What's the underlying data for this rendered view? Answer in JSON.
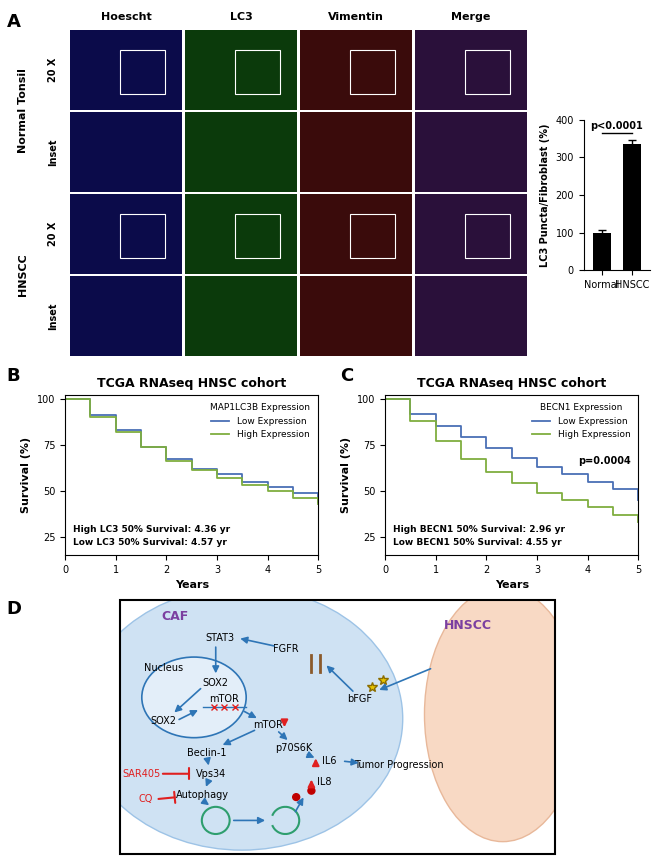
{
  "panel_labels": [
    "A",
    "B",
    "C",
    "D"
  ],
  "microscopy": {
    "columns": [
      "Hoescht",
      "LC3",
      "Vimentin",
      "Merge"
    ],
    "colors": [
      "#0b0b4a",
      "#0b3a0b",
      "#3a0b0b",
      "#2a103a"
    ],
    "rows": [
      {
        "group": "Normal Tonsil",
        "subrows": [
          "20 X",
          "Inset"
        ]
      },
      {
        "group": "HNSCC",
        "subrows": [
          "20 X",
          "Inset"
        ]
      }
    ]
  },
  "chart_data": [
    {
      "type": "bar",
      "categories": [
        "Normal",
        "HNSCC"
      ],
      "values": [
        100,
        335
      ],
      "errors": [
        8,
        12
      ],
      "color": "#000000",
      "ylabel": "LC3 Puncta/Fibroblast (%)",
      "ylim": [
        0,
        400
      ],
      "yticks": [
        0,
        100,
        200,
        300,
        400
      ],
      "annotation": "p<0.0001"
    },
    {
      "type": "line",
      "line_style": "steps",
      "title": "TCGA RNAseq HNSC cohort",
      "legend_title": "MAP1LC3B Expression",
      "legend": "upper right",
      "x": [
        0,
        0.5,
        1,
        1.5,
        2,
        2.5,
        3,
        3.5,
        4,
        4.5,
        5
      ],
      "series": [
        {
          "name": "Low Expression",
          "color": "#4a6fb5",
          "values": [
            100,
            91,
            83,
            74,
            67,
            62,
            59,
            55,
            52,
            49,
            44
          ]
        },
        {
          "name": "High Expression",
          "color": "#7fae3f",
          "values": [
            100,
            90,
            82,
            74,
            66,
            61,
            57,
            53,
            50,
            46,
            43
          ]
        }
      ],
      "xlabel": "Years",
      "ylabel": "Survival (%)",
      "xlim": [
        0,
        5
      ],
      "xticks": [
        0,
        1,
        2,
        3,
        4,
        5
      ],
      "ylim": [
        15,
        102
      ],
      "yticks": [
        25,
        50,
        75,
        100
      ],
      "annotations": [
        "High LC3 50% Survival: 4.36 yr",
        "Low LC3 50% Survival: 4.57 yr"
      ]
    },
    {
      "type": "line",
      "line_style": "steps",
      "title": "TCGA RNAseq HNSC cohort",
      "legend_title": "BECN1 Expression",
      "legend": "upper right",
      "x": [
        0,
        0.5,
        1,
        1.5,
        2,
        2.5,
        3,
        3.5,
        4,
        4.5,
        5
      ],
      "series": [
        {
          "name": "Low Expression",
          "color": "#4a6fb5",
          "values": [
            100,
            92,
            85,
            79,
            73,
            68,
            63,
            59,
            55,
            51,
            45
          ]
        },
        {
          "name": "High Expression",
          "color": "#7fae3f",
          "values": [
            100,
            88,
            77,
            67,
            60,
            54,
            49,
            45,
            41,
            37,
            33
          ]
        }
      ],
      "xlabel": "Years",
      "ylabel": "Survival (%)",
      "xlim": [
        0,
        5
      ],
      "xticks": [
        0,
        1,
        2,
        3,
        4,
        5
      ],
      "ylim": [
        15,
        102
      ],
      "yticks": [
        25,
        50,
        75,
        100
      ],
      "pvalue": "p=0.0004",
      "annotations": [
        "High BECN1 50% Survival: 2.96 yr",
        "Low BECN1 50% Survival: 4.55 yr"
      ]
    }
  ],
  "diagram": {
    "nodes": [
      {
        "label": "CAF",
        "color": "#7b3fa0"
      },
      {
        "label": "HNSCC",
        "color": "#7b3fa0"
      },
      {
        "label": "Nucleus",
        "color": "#000000"
      },
      {
        "label": "SOX2",
        "color": "#000000"
      },
      {
        "label": "SOX2",
        "color": "#000000"
      },
      {
        "label": "mTOR",
        "color": "#000000"
      },
      {
        "label": "STAT3",
        "color": "#000000"
      },
      {
        "label": "FGFR",
        "color": "#000000"
      },
      {
        "label": "bFGF",
        "color": "#000000"
      },
      {
        "label": "mTOR",
        "color": "#000000"
      },
      {
        "label": "p70S6K",
        "color": "#000000"
      },
      {
        "label": "Beclin-1",
        "color": "#000000"
      },
      {
        "label": "Vps34",
        "color": "#000000"
      },
      {
        "label": "SAR405",
        "color": "#e02020"
      },
      {
        "label": "Autophagy",
        "color": "#000000"
      },
      {
        "label": "CQ",
        "color": "#e02020"
      },
      {
        "label": "IL6",
        "color": "#000000"
      },
      {
        "label": "IL8",
        "color": "#000000"
      },
      {
        "label": "Tumor Progression",
        "color": "#000000"
      }
    ]
  }
}
